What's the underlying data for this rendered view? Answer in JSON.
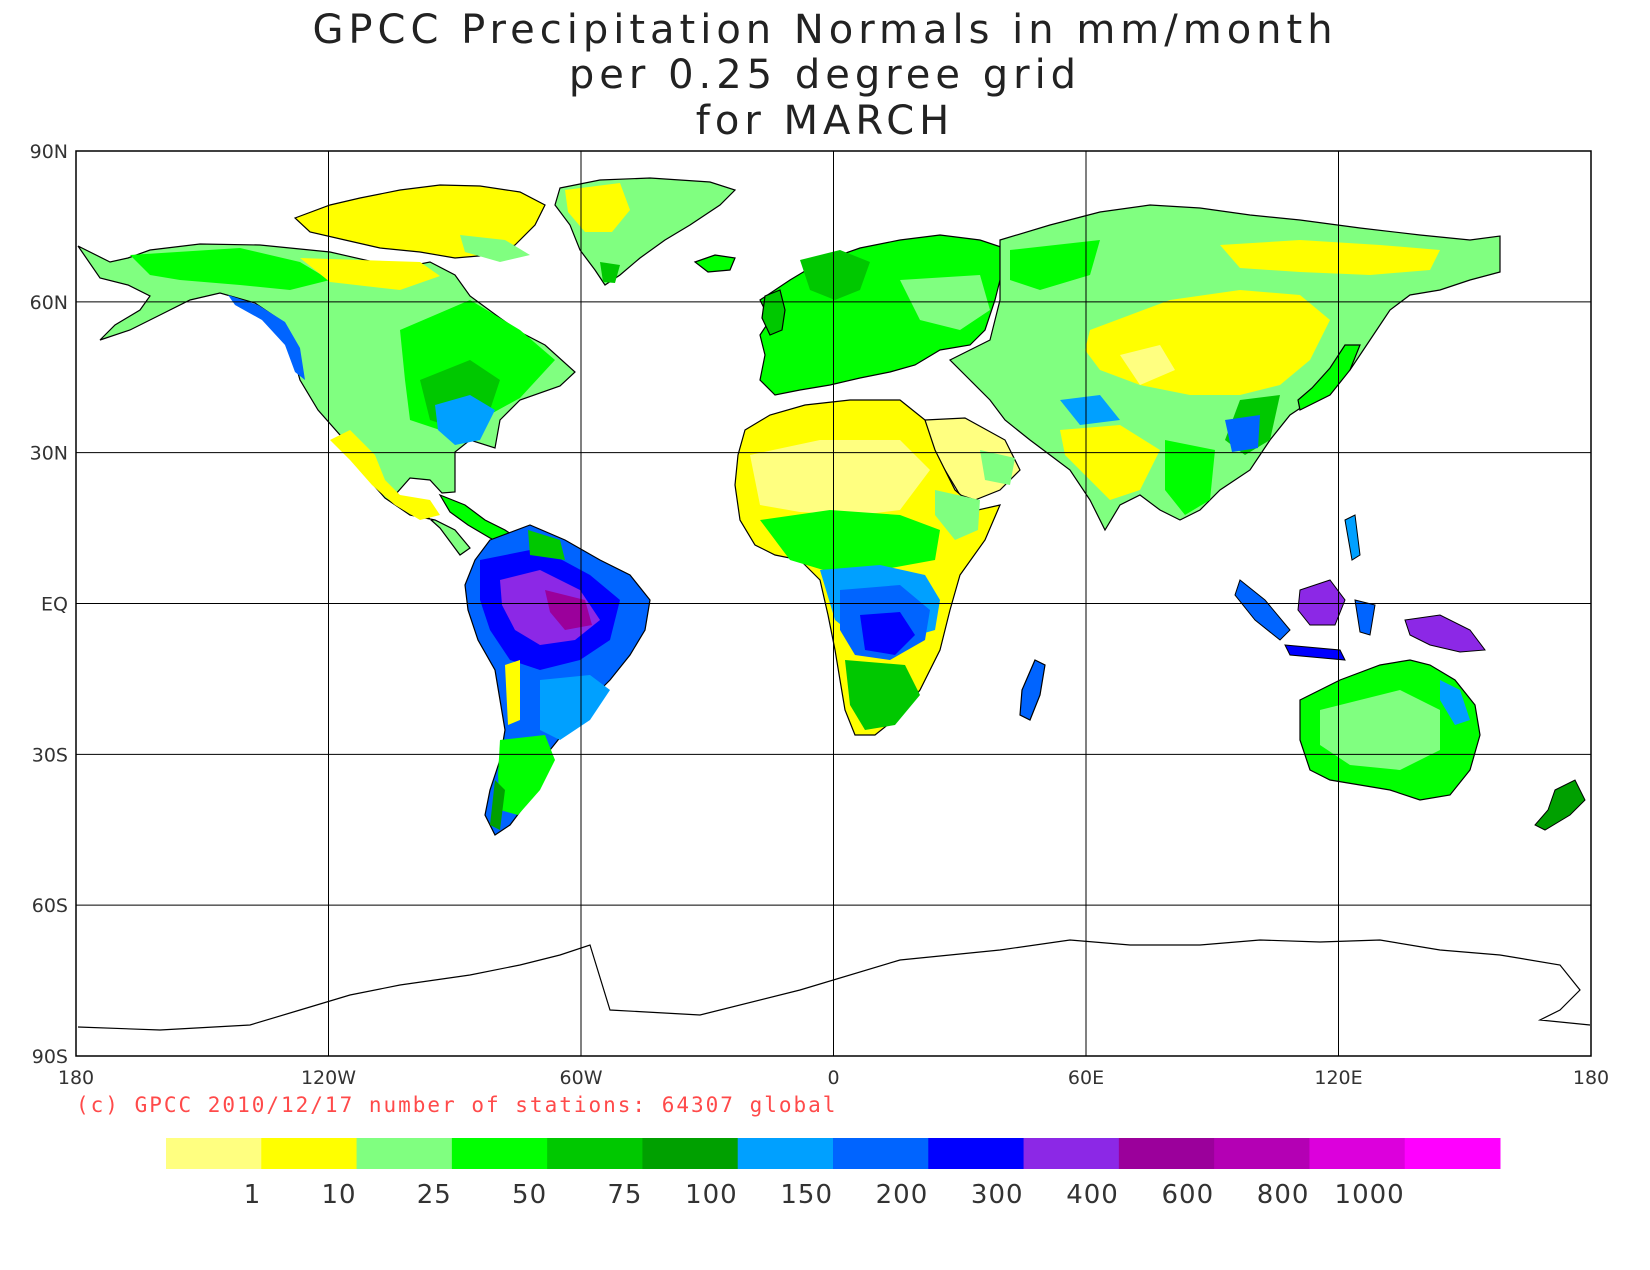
{
  "title": {
    "line1": "GPCC Precipitation Normals in mm/month",
    "line2": "per 0.25 degree grid",
    "line3": "for MARCH"
  },
  "axes": {
    "lat_labels": [
      "90N",
      "60N",
      "30N",
      "EQ",
      "30S",
      "60S",
      "90S"
    ],
    "lon_labels": [
      "180",
      "120W",
      "60W",
      "0",
      "60E",
      "120E",
      "180"
    ],
    "gridlines": true
  },
  "credit": "(c) GPCC 2010/12/17 number of stations: 64307 global",
  "colorbar": {
    "bins": [
      {
        "color": "#ffff80",
        "label": "1"
      },
      {
        "color": "#ffff00",
        "label": "10"
      },
      {
        "color": "#80ff80",
        "label": "25"
      },
      {
        "color": "#00ff00",
        "label": "50"
      },
      {
        "color": "#00c800",
        "label": "75"
      },
      {
        "color": "#00a000",
        "label": "100"
      },
      {
        "color": "#00a0ff",
        "label": "150"
      },
      {
        "color": "#0064ff",
        "label": "200"
      },
      {
        "color": "#0000ff",
        "label": "300"
      },
      {
        "color": "#8c28e6",
        "label": "400"
      },
      {
        "color": "#9b009b",
        "label": "600"
      },
      {
        "color": "#b400b4",
        "label": "800"
      },
      {
        "color": "#dc00dc",
        "label": "1000"
      },
      {
        "color": "#ff00ff",
        "label": ""
      }
    ]
  },
  "map_colors": {
    "frame": "#000000",
    "ocean": "#ffffff"
  }
}
